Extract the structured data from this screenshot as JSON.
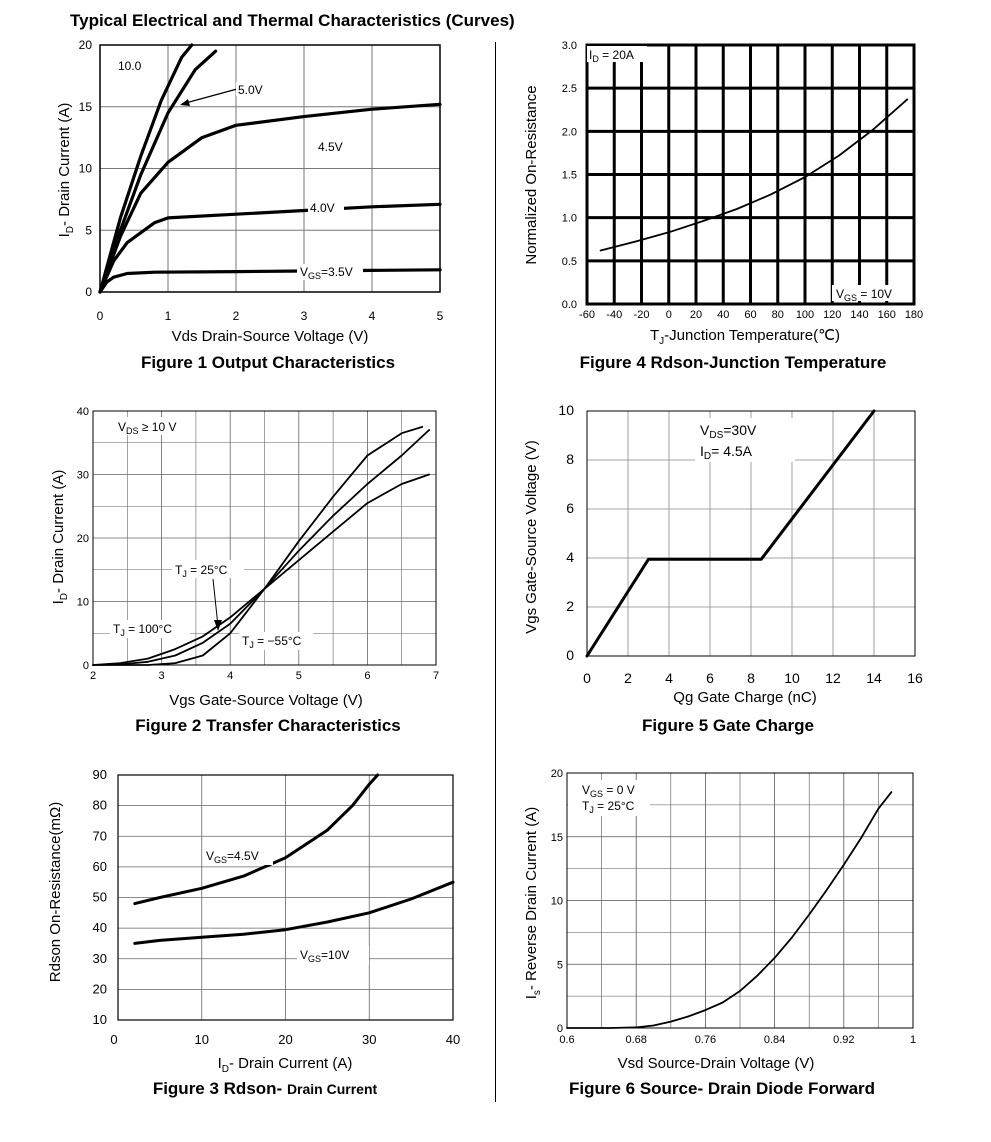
{
  "page_title": "Typical Electrical and Thermal Characteristics (Curves)",
  "chart_data": [
    {
      "type": "line",
      "caption": "Figure 1 Output Characteristics",
      "xlabel": "Vds Drain-Source Voltage (V)",
      "ylabel": "ID- Drain Current (A)",
      "xlim": [
        0,
        5
      ],
      "ylim": [
        0,
        20
      ],
      "xticks": [
        0,
        1,
        2,
        3,
        4,
        5
      ],
      "yticks": [
        0,
        5,
        10,
        15,
        20
      ],
      "xtick_labels": [
        "0",
        "1",
        "2",
        "3",
        "4",
        "5"
      ],
      "ytick_labels": [
        "0",
        "5",
        "10",
        "15",
        "20"
      ],
      "grid": true,
      "series": [
        {
          "name": "10.0",
          "x": [
            0,
            0.3,
            0.6,
            0.9,
            1.2,
            1.35
          ],
          "y": [
            0,
            6,
            11,
            15.5,
            19,
            20
          ]
        },
        {
          "name": "5.0V",
          "x": [
            0,
            0.3,
            0.6,
            1.0,
            1.4,
            1.7
          ],
          "y": [
            0,
            5,
            9.5,
            14.5,
            18,
            19.5
          ]
        },
        {
          "name": "4.5V",
          "x": [
            0,
            0.3,
            0.6,
            1.0,
            1.5,
            2.0,
            3.0,
            4.0,
            5.0
          ],
          "y": [
            0,
            4.5,
            8,
            10.5,
            12.5,
            13.5,
            14.2,
            14.8,
            15.2
          ]
        },
        {
          "name": "4.0V",
          "x": [
            0,
            0.2,
            0.4,
            0.6,
            0.8,
            1.0,
            2.0,
            3.0,
            4.0,
            5.0
          ],
          "y": [
            0,
            2.5,
            4,
            4.8,
            5.6,
            6,
            6.3,
            6.6,
            6.9,
            7.1
          ]
        },
        {
          "name": "VGS=3.5V",
          "x": [
            0,
            0.1,
            0.2,
            0.4,
            0.8,
            2.0,
            3.0,
            4.0,
            5.0
          ],
          "y": [
            0,
            0.8,
            1.2,
            1.5,
            1.6,
            1.65,
            1.7,
            1.75,
            1.8
          ]
        }
      ],
      "annotations": [
        "10.0",
        "5.0V",
        "4.5V",
        "4.0V",
        "VGS=3.5V"
      ]
    },
    {
      "type": "line",
      "caption": "Figure 2 Transfer Characteristics",
      "xlabel": "Vgs Gate-Source Voltage (V)",
      "ylabel": "ID- Drain Current (A)",
      "xlim": [
        2,
        7
      ],
      "ylim": [
        0,
        40
      ],
      "xticks": [
        2,
        3,
        4,
        5,
        6,
        7
      ],
      "yticks": [
        0,
        10,
        20,
        30,
        40
      ],
      "xtick_labels": [
        "2",
        "3",
        "4",
        "5",
        "6",
        "7"
      ],
      "ytick_labels": [
        "0",
        "10",
        "20",
        "30",
        "40"
      ],
      "grid": true,
      "series": [
        {
          "name": "TJ = 100°C",
          "x": [
            2.0,
            2.4,
            2.8,
            3.2,
            3.6,
            4.0,
            4.5,
            5.0,
            5.5,
            6.0,
            6.5,
            6.9
          ],
          "y": [
            0,
            0.3,
            1.0,
            2.5,
            4.5,
            7.5,
            12,
            16.5,
            21,
            25.5,
            28.5,
            30
          ]
        },
        {
          "name": "TJ = 25°C",
          "x": [
            2.0,
            2.4,
            2.8,
            3.2,
            3.6,
            4.0,
            4.5,
            5.0,
            5.5,
            6.0,
            6.5,
            6.9
          ],
          "y": [
            0,
            0.1,
            0.5,
            1.5,
            3.5,
            6.5,
            12,
            18,
            23.5,
            28.5,
            33,
            37
          ]
        },
        {
          "name": "TJ = -55°C",
          "x": [
            2.0,
            2.8,
            3.2,
            3.6,
            4.0,
            4.5,
            5.0,
            5.5,
            6.0,
            6.5,
            6.8
          ],
          "y": [
            0,
            0,
            0.3,
            1.5,
            5,
            12,
            19.5,
            26.5,
            33,
            36.5,
            37.5
          ]
        }
      ],
      "annotations": [
        "VDS ≥ 10 V",
        "TJ = 25°C",
        "TJ = 100°C",
        "TJ = -55°C"
      ]
    },
    {
      "type": "line",
      "caption": "Figure 3 Rdson- Drain Current",
      "xlabel": "ID- Drain Current (A)",
      "ylabel": "Rdson On-Resistance(mΩ)",
      "xlim": [
        0,
        40
      ],
      "ylim": [
        10,
        90
      ],
      "xticks": [
        0,
        10,
        20,
        30,
        40
      ],
      "yticks": [
        10,
        20,
        30,
        40,
        50,
        60,
        70,
        80,
        90
      ],
      "xtick_labels": [
        "0",
        "10",
        "20",
        "30",
        "40"
      ],
      "ytick_labels": [
        "10",
        "20",
        "30",
        "40",
        "50",
        "60",
        "70",
        "80",
        "90"
      ],
      "grid": true,
      "series": [
        {
          "name": "VGS=4.5V",
          "x": [
            2,
            5,
            10,
            15,
            20,
            25,
            28,
            30,
            31
          ],
          "y": [
            48,
            50,
            53,
            57,
            63,
            72,
            80,
            87,
            90
          ]
        },
        {
          "name": "VGS=10V",
          "x": [
            2,
            5,
            10,
            15,
            20,
            25,
            30,
            35,
            40
          ],
          "y": [
            35,
            36,
            37,
            38,
            39.5,
            42,
            45,
            49.5,
            55
          ]
        }
      ],
      "annotations": [
        "VGS=4.5V",
        "VGS=10V"
      ]
    },
    {
      "type": "line",
      "caption": "Figure 4 Rdson-Junction Temperature",
      "xlabel": "TJ-Junction Temperature(℃)",
      "ylabel": "Normalized On-Resistance",
      "xlim": [
        -60,
        180
      ],
      "ylim": [
        0,
        3.0
      ],
      "xticks": [
        -60,
        -40,
        -20,
        0,
        20,
        40,
        60,
        80,
        100,
        120,
        140,
        160,
        180
      ],
      "yticks": [
        0,
        0.5,
        1.0,
        1.5,
        2.0,
        2.5,
        3.0
      ],
      "xtick_labels": [
        "-60",
        "-40",
        "-20",
        "0",
        "20",
        "40",
        "60",
        "80",
        "100",
        "120",
        "140",
        "160",
        "180"
      ],
      "ytick_labels": [
        "0.0",
        "0.5",
        "1.0",
        "1.5",
        "2.0",
        "2.5",
        "3.0"
      ],
      "grid": true,
      "series": [
        {
          "name": "VGS = 10V",
          "x": [
            -50,
            -25,
            0,
            25,
            50,
            75,
            100,
            125,
            150,
            175
          ],
          "y": [
            0.62,
            0.72,
            0.83,
            0.96,
            1.1,
            1.27,
            1.47,
            1.72,
            2.02,
            2.37
          ]
        }
      ],
      "annotations": [
        "ID = 20A",
        "VGS = 10V"
      ]
    },
    {
      "type": "line",
      "caption": "Figure 5 Gate Charge",
      "xlabel": "Qg Gate Charge (nC)",
      "ylabel": "Vgs Gate-Source Voltage (V)",
      "xlim": [
        0,
        16
      ],
      "ylim": [
        0,
        10
      ],
      "xticks": [
        0,
        2,
        4,
        6,
        8,
        10,
        12,
        14,
        16
      ],
      "yticks": [
        0,
        2,
        4,
        6,
        8,
        10
      ],
      "xtick_labels": [
        "0",
        "2",
        "4",
        "6",
        "8",
        "10",
        "12",
        "14",
        "16"
      ],
      "ytick_labels": [
        "0",
        "2",
        "4",
        "6",
        "8",
        "10"
      ],
      "grid": true,
      "series": [
        {
          "name": "",
          "x": [
            0,
            3.0,
            8.5,
            14.0
          ],
          "y": [
            0,
            3.95,
            3.95,
            10
          ]
        }
      ],
      "annotations": [
        "VDS=30V",
        "ID= 4.5A"
      ]
    },
    {
      "type": "line",
      "caption": "Figure 6 Source- Drain Diode Forward",
      "xlabel": "Vsd Source-Drain Voltage (V)",
      "ylabel": "Is- Reverse Drain Current (A)",
      "xlim": [
        0.6,
        1.0
      ],
      "ylim": [
        0,
        20
      ],
      "xticks": [
        0.6,
        0.68,
        0.76,
        0.84,
        0.92,
        1.0
      ],
      "yticks": [
        0,
        5,
        10,
        15,
        20
      ],
      "xtick_labels": [
        "0.6",
        "0.68",
        "0.76",
        "0.84",
        "0.92",
        "1"
      ],
      "ytick_labels": [
        "0",
        "5",
        "10",
        "15",
        "20"
      ],
      "grid": true,
      "series": [
        {
          "name": "",
          "x": [
            0.6,
            0.65,
            0.68,
            0.7,
            0.72,
            0.74,
            0.76,
            0.78,
            0.8,
            0.82,
            0.84,
            0.86,
            0.88,
            0.9,
            0.92,
            0.94,
            0.96,
            0.975
          ],
          "y": [
            0,
            0,
            0.05,
            0.2,
            0.5,
            0.9,
            1.4,
            2.0,
            2.9,
            4.1,
            5.5,
            7.1,
            8.9,
            10.8,
            12.8,
            14.9,
            17.2,
            18.5
          ]
        }
      ],
      "annotations": [
        "VGS = 0 V",
        "TJ = 25°C"
      ]
    }
  ]
}
